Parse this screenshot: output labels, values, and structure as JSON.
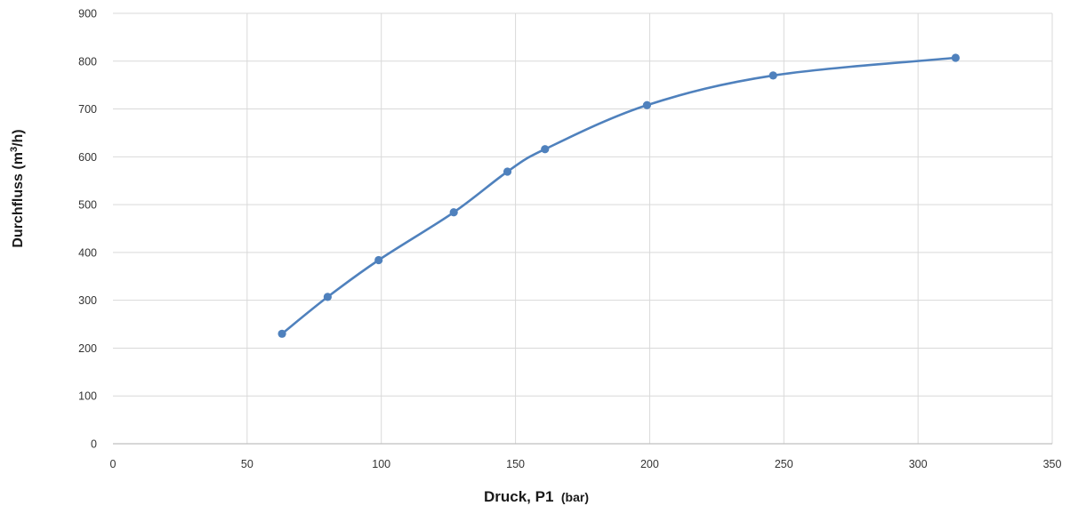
{
  "chart_data": {
    "type": "line",
    "xlabel_main": "Druck, P1",
    "xlabel_unit": "(bar)",
    "ylabel_main": "Durchfluss (m",
    "ylabel_sup": "3",
    "ylabel_end": "/h)",
    "xlim": [
      0,
      350
    ],
    "ylim": [
      0,
      900
    ],
    "xticks": [
      0,
      50,
      100,
      150,
      200,
      250,
      300,
      350
    ],
    "yticks": [
      0,
      100,
      200,
      300,
      400,
      500,
      600,
      700,
      800,
      900
    ],
    "grid": true,
    "series": [
      {
        "color": "#4f81bd",
        "x": [
          63,
          80,
          99,
          127,
          147,
          161,
          199,
          246,
          314
        ],
        "y": [
          230,
          307,
          384,
          484,
          569,
          616,
          708,
          770,
          807
        ]
      }
    ]
  }
}
